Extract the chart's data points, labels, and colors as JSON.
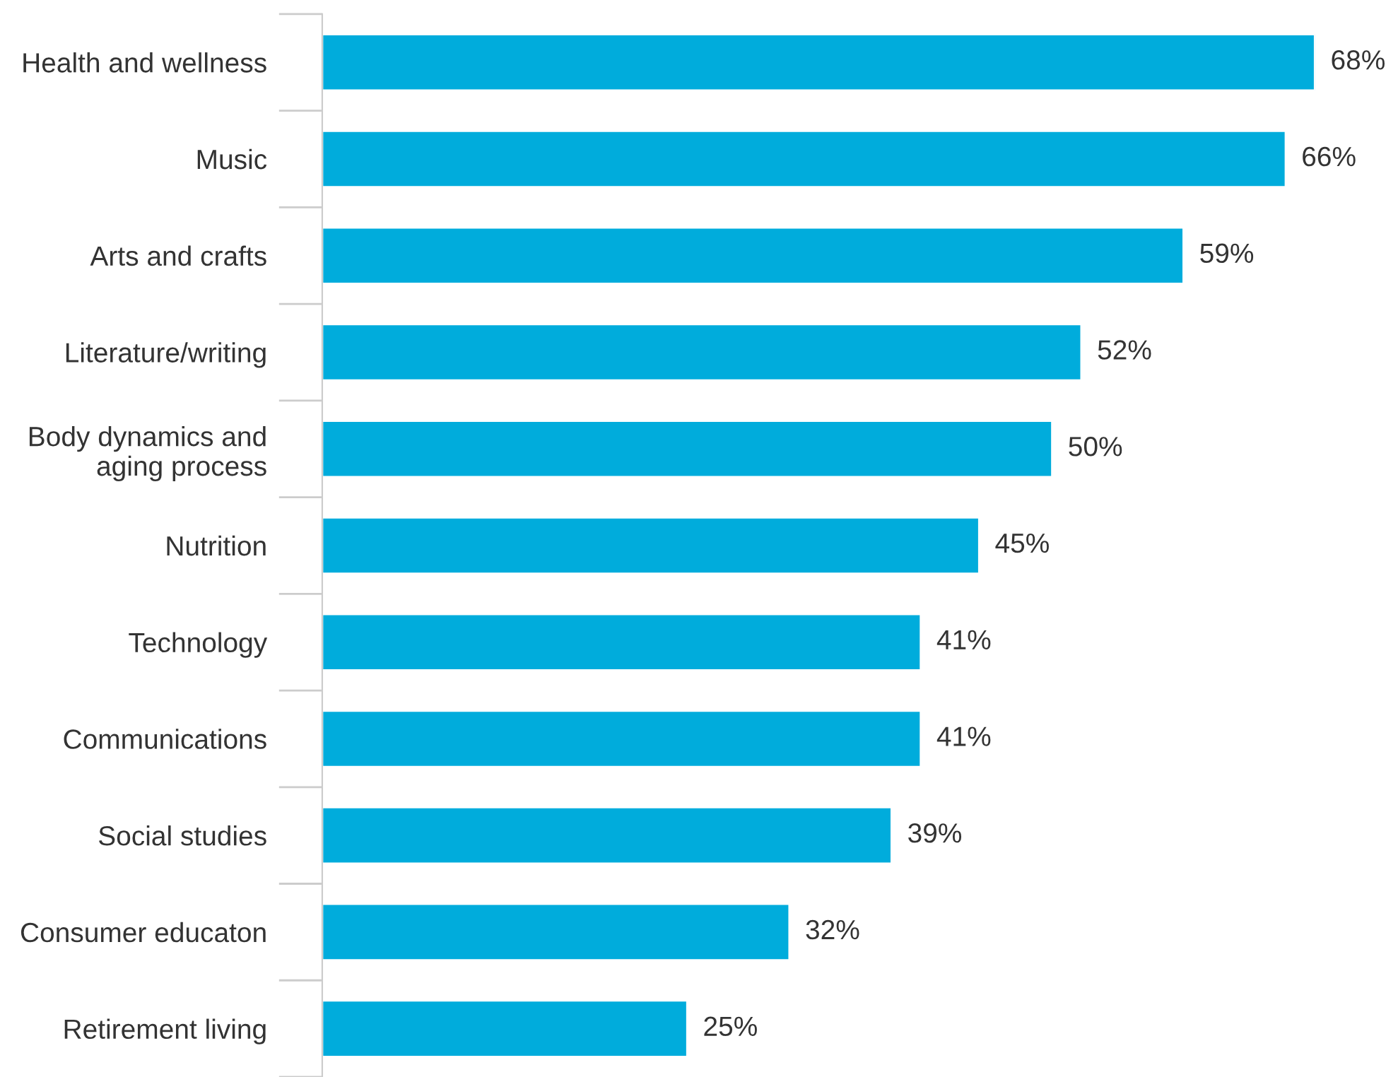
{
  "chart_data": {
    "type": "bar",
    "orientation": "horizontal",
    "categories": [
      "Health and wellness",
      "Music",
      "Arts and crafts",
      "Literature/writing",
      "Body dynamics and\naging process",
      "Nutrition",
      "Technology",
      "Communications",
      "Social studies",
      "Consumer educaton",
      "Retirement living"
    ],
    "values": [
      68,
      66,
      59,
      52,
      50,
      45,
      41,
      41,
      39,
      32,
      25
    ],
    "value_labels": [
      "68%",
      "66%",
      "59%",
      "52%",
      "50%",
      "45%",
      "41%",
      "41%",
      "39%",
      "32%",
      "25%"
    ],
    "color": "#00acdc",
    "grid": false,
    "legend": false
  }
}
